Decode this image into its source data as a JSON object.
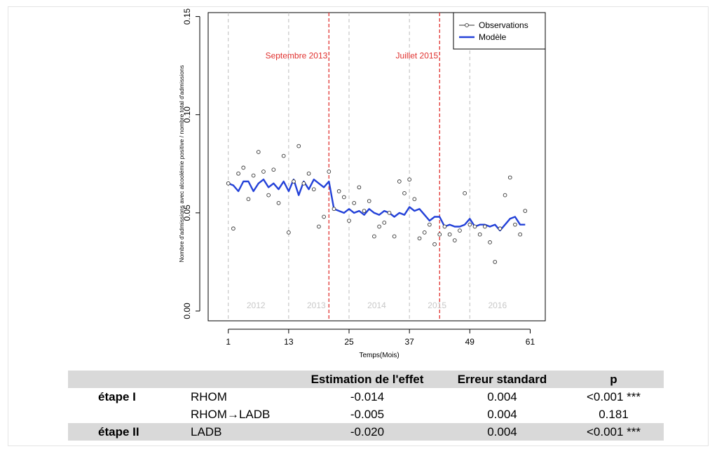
{
  "chart_data": {
    "type": "line",
    "title": "",
    "xlabel": "Temps(Mois)",
    "ylabel": "Nombre d'admissions avec alcoolémie positive / nombre total d'admissions",
    "xlim": [
      -3,
      64
    ],
    "ylim": [
      -0.005,
      0.152
    ],
    "xticks": [
      1,
      13,
      25,
      37,
      49,
      61
    ],
    "yticks": [
      0.0,
      0.05,
      0.1,
      0.15
    ],
    "ytick_labels": [
      "0.00",
      "0.05",
      "0.10",
      "0.15"
    ],
    "year_dividers": [
      1,
      13,
      25,
      37,
      49
    ],
    "year_labels": [
      {
        "text": "2012",
        "x": 6.5
      },
      {
        "text": "2013",
        "x": 18.5
      },
      {
        "text": "2014",
        "x": 30.5
      },
      {
        "text": "2015",
        "x": 42.5
      },
      {
        "text": "2016",
        "x": 54.5
      }
    ],
    "interventions": [
      {
        "label": "Septembre 2013",
        "x": 21
      },
      {
        "label": "Juillet 2015",
        "x": 43
      }
    ],
    "legend": {
      "position": "top-right",
      "entries": [
        "Observations",
        "Modèle"
      ]
    },
    "series": [
      {
        "name": "Observations",
        "style": "points",
        "x": [
          1,
          2,
          3,
          4,
          5,
          6,
          7,
          8,
          9,
          10,
          11,
          12,
          13,
          14,
          15,
          16,
          17,
          18,
          19,
          20,
          21,
          22,
          23,
          24,
          25,
          26,
          27,
          28,
          29,
          30,
          31,
          32,
          33,
          34,
          35,
          36,
          37,
          38,
          39,
          40,
          41,
          42,
          43,
          44,
          45,
          46,
          47,
          48,
          49,
          50,
          51,
          52,
          53,
          54,
          55,
          56,
          57,
          58,
          59,
          60
        ],
        "y": [
          0.065,
          0.042,
          0.07,
          0.073,
          0.057,
          0.069,
          0.081,
          0.071,
          0.059,
          0.072,
          0.055,
          0.079,
          0.04,
          0.066,
          0.084,
          0.065,
          0.07,
          0.062,
          0.043,
          0.048,
          0.071,
          0.052,
          0.061,
          0.058,
          0.046,
          0.055,
          0.063,
          0.051,
          0.056,
          0.038,
          0.043,
          0.045,
          0.05,
          0.038,
          0.066,
          0.06,
          0.067,
          0.057,
          0.037,
          0.04,
          0.044,
          0.034,
          0.039,
          0.043,
          0.039,
          0.036,
          0.041,
          0.06,
          0.044,
          0.043,
          0.039,
          0.043,
          0.035,
          0.025,
          0.042,
          0.059,
          0.068,
          0.044,
          0.039,
          0.051
        ]
      },
      {
        "name": "Modèle",
        "style": "line",
        "color": "#2341d8",
        "x": [
          1,
          2,
          3,
          4,
          5,
          6,
          7,
          8,
          9,
          10,
          11,
          12,
          13,
          14,
          15,
          16,
          17,
          18,
          19,
          20,
          21,
          22,
          23,
          24,
          25,
          26,
          27,
          28,
          29,
          30,
          31,
          32,
          33,
          34,
          35,
          36,
          37,
          38,
          39,
          40,
          41,
          42,
          43,
          44,
          45,
          46,
          47,
          48,
          49,
          50,
          51,
          52,
          53,
          54,
          55,
          56,
          57,
          58,
          59,
          60
        ],
        "y": [
          0.065,
          0.064,
          0.061,
          0.066,
          0.066,
          0.061,
          0.065,
          0.067,
          0.063,
          0.065,
          0.062,
          0.066,
          0.061,
          0.067,
          0.059,
          0.066,
          0.062,
          0.067,
          0.065,
          0.063,
          0.066,
          0.052,
          0.051,
          0.05,
          0.052,
          0.05,
          0.051,
          0.049,
          0.052,
          0.05,
          0.049,
          0.051,
          0.05,
          0.048,
          0.05,
          0.049,
          0.053,
          0.051,
          0.052,
          0.049,
          0.046,
          0.048,
          0.048,
          0.043,
          0.044,
          0.043,
          0.043,
          0.044,
          0.047,
          0.043,
          0.044,
          0.044,
          0.043,
          0.044,
          0.041,
          0.044,
          0.047,
          0.048,
          0.044,
          0.044
        ]
      }
    ]
  },
  "table": {
    "headers": [
      "",
      "",
      "Estimation de l'effet",
      "Erreur standard",
      "p"
    ],
    "rows": [
      {
        "stage": "étape I",
        "effect": "RHOM",
        "estimate": "-0.014",
        "se": "0.004",
        "p": "<0.001 ***"
      },
      {
        "stage": "",
        "effect": "RHOM→LADB",
        "estimate": "-0.005",
        "se": "0.004",
        "p": "0.181"
      },
      {
        "stage": "étape II",
        "effect": "LADB",
        "estimate": "-0.020",
        "se": "0.004",
        "p": "<0.001 ***"
      }
    ]
  }
}
